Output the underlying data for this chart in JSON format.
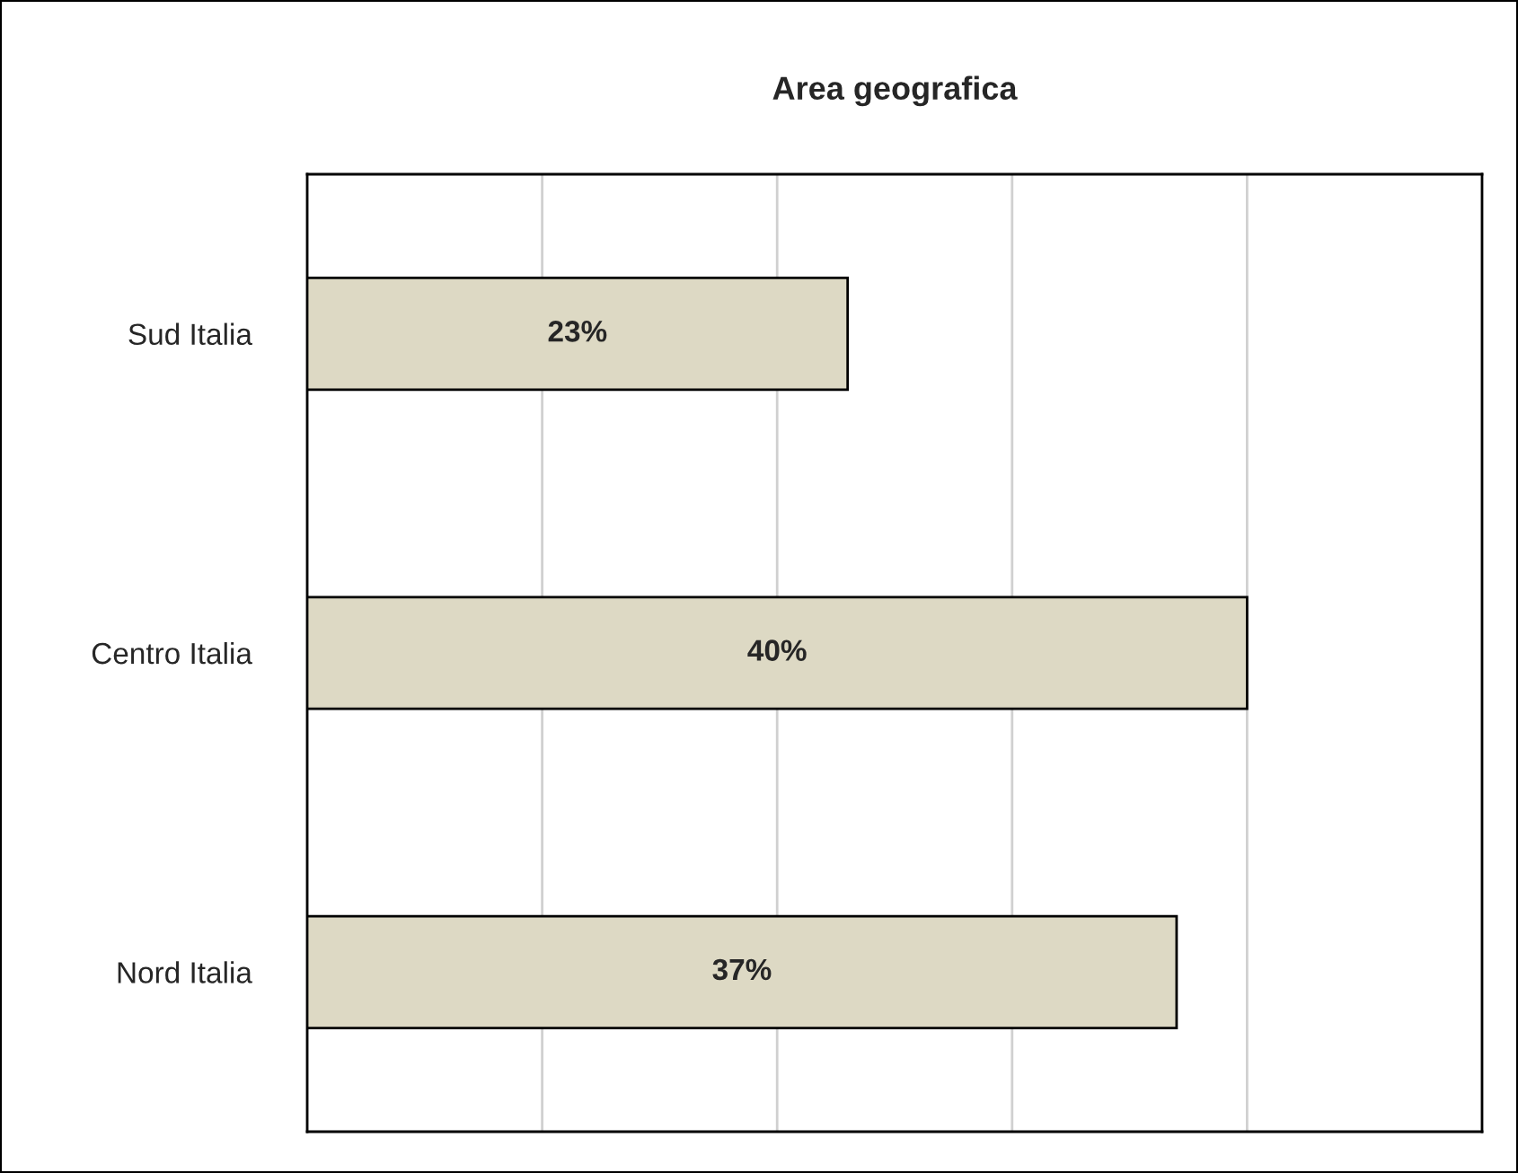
{
  "chart_data": {
    "type": "bar",
    "orientation": "horizontal",
    "title": "Area geografica",
    "categories": [
      "Sud Italia",
      "Centro Italia",
      "Nord Italia"
    ],
    "values": [
      23,
      40,
      37
    ],
    "value_labels": [
      "23%",
      "40%",
      "37%"
    ],
    "color": "#ddd9c4",
    "xlim": [
      0,
      50
    ],
    "xticks": [
      {
        "value": 0,
        "label": null
      },
      {
        "value": 10,
        "label": null
      },
      {
        "value": 20,
        "label": null
      },
      {
        "value": 30,
        "label": null
      },
      {
        "value": 40,
        "label": null
      },
      {
        "value": 50,
        "label": null
      }
    ],
    "grid": "x",
    "tick_labels": "y",
    "legend": false
  }
}
